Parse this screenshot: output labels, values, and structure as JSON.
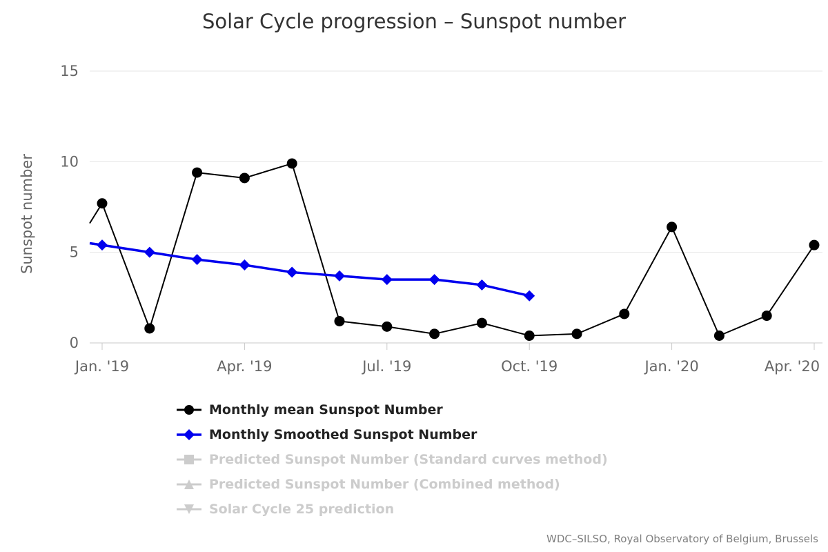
{
  "chart_data": {
    "type": "line",
    "title": "Solar Cycle progression – Sunspot number",
    "ylabel": "Sunspot number",
    "xlabel": "",
    "ylim": [
      0,
      15
    ],
    "yticks": [
      0,
      5,
      10,
      15
    ],
    "grid": true,
    "legend_position": "bottom-left",
    "categories": [
      "Jan. '19",
      "Feb. '19",
      "Mar. '19",
      "Apr. '19",
      "May '19",
      "Jun. '19",
      "Jul. '19",
      "Aug. '19",
      "Sep. '19",
      "Oct. '19",
      "Nov. '19",
      "Dec. '19",
      "Jan. '20",
      "Feb. '20",
      "Mar. '20",
      "Apr. '20"
    ],
    "xtick_indices": [
      0,
      3,
      6,
      9,
      12,
      15
    ],
    "xtick_labels": [
      "Jan. '19",
      "Apr. '19",
      "Jul. '19",
      "Oct. '19",
      "Jan. '20",
      "Apr. '20"
    ],
    "series": [
      {
        "name": "Monthly mean Sunspot Number",
        "color": "#000000",
        "marker": "circle",
        "line_width": 2,
        "enabled": true,
        "left_edge_entry": 6.6,
        "values": [
          7.7,
          0.8,
          9.4,
          9.1,
          9.9,
          1.2,
          0.9,
          0.5,
          1.1,
          0.4,
          0.5,
          1.6,
          6.4,
          0.4,
          1.5,
          5.4
        ]
      },
      {
        "name": "Monthly Smoothed Sunspot Number",
        "color": "#0000ee",
        "marker": "diamond",
        "line_width": 3.5,
        "enabled": true,
        "left_edge_entry": 5.5,
        "values": [
          5.4,
          5.0,
          4.6,
          4.3,
          3.9,
          3.7,
          3.5,
          3.5,
          3.2,
          2.6
        ]
      },
      {
        "name": "Predicted Sunspot Number (Standard curves method)",
        "color": "#cccccc",
        "marker": "square",
        "line_width": 2,
        "enabled": false,
        "values": []
      },
      {
        "name": "Predicted Sunspot Number (Combined method)",
        "color": "#cccccc",
        "marker": "triangle-up",
        "line_width": 2,
        "enabled": false,
        "values": []
      },
      {
        "name": "Solar Cycle 25 prediction",
        "color": "#cccccc",
        "marker": "triangle-down",
        "line_width": 2,
        "enabled": false,
        "values": []
      }
    ],
    "colors": {
      "grid": "#e6e6e6",
      "axis": "#c9c9c9",
      "tick_text": "#666666",
      "title_text": "#333333",
      "disabled_legend": "#cccccc",
      "legend_text": "#222222"
    }
  },
  "credit": "WDC–SILSO, Royal Observatory of Belgium, Brussels"
}
